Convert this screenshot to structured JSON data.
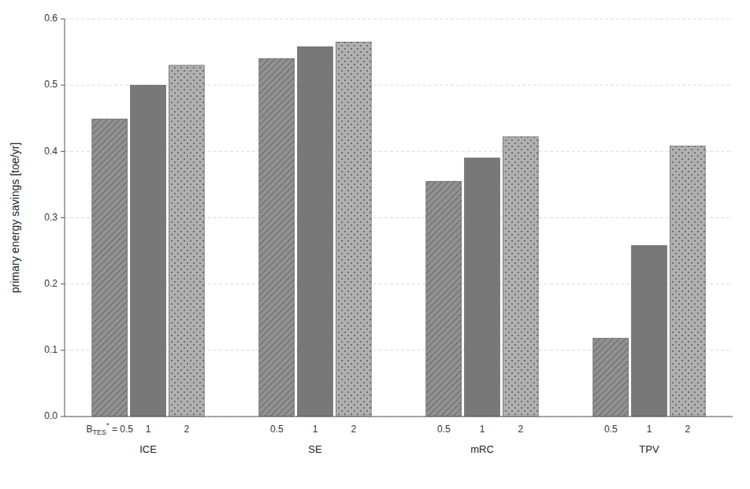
{
  "chart_data": {
    "type": "bar",
    "categories": [
      "ICE",
      "SE",
      "mRC",
      "TPV"
    ],
    "series": [
      {
        "name": "0.5",
        "color": "#909090",
        "values": [
          0.449,
          0.54,
          0.355,
          0.118
        ]
      },
      {
        "name": "1",
        "color": "#787878",
        "values": [
          0.5,
          0.558,
          0.39,
          0.258
        ]
      },
      {
        "name": "2",
        "color": "#b0b0b0",
        "values": [
          0.53,
          0.565,
          0.422,
          0.408
        ]
      }
    ],
    "series_label": {
      "text": "B",
      "sub": "TES",
      "sup": "*",
      "sep": " = "
    },
    "ylabel": "primary energy savings [toe/yr]",
    "ylim": [
      0.0,
      0.6
    ],
    "yticks": [
      {
        "value": 0.0,
        "label": "0.0"
      },
      0.1,
      0.2,
      0.3,
      0.4,
      0.5,
      0.6
    ],
    "grid": true
  }
}
